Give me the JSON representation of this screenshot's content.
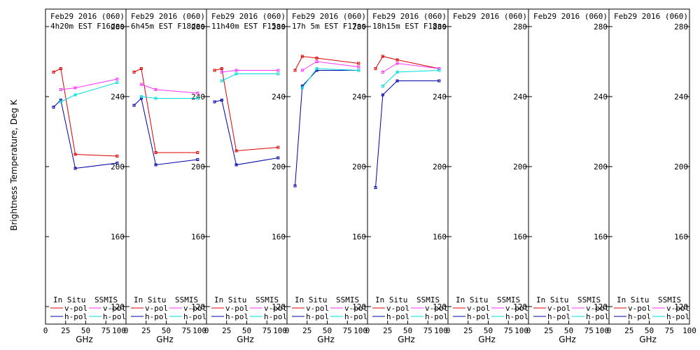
{
  "chart_data": {
    "type": "line",
    "ylabel": "Brightness Temperature, Deg K",
    "ylim": [
      110,
      290
    ],
    "yticks": [
      120,
      160,
      200,
      240,
      280
    ],
    "xlim": [
      0,
      100
    ],
    "xticks": [
      0,
      25,
      50,
      75,
      100
    ],
    "xtick_labels": [
      "0",
      "25",
      "50",
      "75",
      "100"
    ],
    "last_panel_xtick_labels": [
      "0",
      "25",
      "50",
      "75",
      "100"
    ],
    "colors": {
      "insitu_v": "#dd0000",
      "insitu_h": "#0000aa",
      "ssmis_v": "#ff33ff",
      "ssmis_h": "#00dddd"
    },
    "legend": {
      "insitu_title": "In Situ",
      "ssmis_title": "SSMIS",
      "vpol": "v-pol",
      "hpol": "h-pol"
    },
    "panels": [
      {
        "title_line1": "Feb29 2016 (060)",
        "title_line2": "4h20m EST F16des",
        "xlabel": "GHz",
        "series": {
          "insitu_v": {
            "x": [
              10,
              19,
              37,
              89
            ],
            "y": [
              254,
              256,
              207,
              206
            ]
          },
          "insitu_h": {
            "x": [
              10,
              19,
              37,
              89
            ],
            "y": [
              234,
              238,
              199,
              202
            ]
          },
          "ssmis_v": {
            "x": [
              19,
              37,
              89
            ],
            "y": [
              244,
              245,
              250
            ]
          },
          "ssmis_h": {
            "x": [
              19,
              37,
              89
            ],
            "y": [
              237,
              241,
              248
            ]
          }
        }
      },
      {
        "title_line1": "Feb29 2016 (060)",
        "title_line2": "6h45m EST F18des",
        "xlabel": "GHz",
        "series": {
          "insitu_v": {
            "x": [
              10,
              19,
              37,
              89
            ],
            "y": [
              254,
              256,
              208,
              208
            ]
          },
          "insitu_h": {
            "x": [
              10,
              19,
              37,
              89
            ],
            "y": [
              235,
              239,
              201,
              204
            ]
          },
          "ssmis_v": {
            "x": [
              19,
              37,
              89
            ],
            "y": [
              247,
              244,
              242
            ]
          },
          "ssmis_h": {
            "x": [
              19,
              37,
              89
            ],
            "y": [
              240,
              239,
              239
            ]
          }
        }
      },
      {
        "title_line1": "Feb29 2016 (060)",
        "title_line2": "11h40m EST F15asc",
        "xlabel": "GHz",
        "series": {
          "insitu_v": {
            "x": [
              10,
              19,
              37,
              89
            ],
            "y": [
              255,
              256,
              209,
              211
            ]
          },
          "insitu_h": {
            "x": [
              10,
              19,
              37,
              89
            ],
            "y": [
              237,
              238,
              201,
              205
            ]
          },
          "ssmis_v": {
            "x": [
              19,
              37,
              89
            ],
            "y": [
              254,
              255,
              255
            ]
          },
          "ssmis_h": {
            "x": [
              19,
              37,
              89
            ],
            "y": [
              249,
              253,
              253
            ]
          }
        }
      },
      {
        "title_line1": "Feb29 2016 (060)",
        "title_line2": "17h 5m EST F17asc",
        "xlabel": "GHz",
        "series": {
          "insitu_v": {
            "x": [
              10,
              19,
              37,
              89
            ],
            "y": [
              255,
              263,
              262,
              259
            ]
          },
          "insitu_h": {
            "x": [
              10,
              19,
              37,
              89
            ],
            "y": [
              189,
              246,
              255,
              255
            ]
          },
          "ssmis_v": {
            "x": [
              19,
              37,
              89
            ],
            "y": [
              255,
              260,
              257
            ]
          },
          "ssmis_h": {
            "x": [
              19,
              37,
              89
            ],
            "y": [
              245,
              256,
              255
            ]
          }
        }
      },
      {
        "title_line1": "Feb29 2016 (060)",
        "title_line2": "18h15m EST F18asc",
        "xlabel": "GHz",
        "series": {
          "insitu_v": {
            "x": [
              10,
              19,
              37,
              89
            ],
            "y": [
              256,
              263,
              261,
              256
            ]
          },
          "insitu_h": {
            "x": [
              10,
              19,
              37,
              89
            ],
            "y": [
              188,
              241,
              249,
              249
            ]
          },
          "ssmis_v": {
            "x": [
              19,
              37,
              89
            ],
            "y": [
              254,
              259,
              256
            ]
          },
          "ssmis_h": {
            "x": [
              19,
              37,
              89
            ],
            "y": [
              246,
              254,
              255
            ]
          }
        }
      },
      {
        "title_line1": "Feb29 2016 (060)",
        "title_line2": "",
        "xlabel": "GHz",
        "series": {}
      },
      {
        "title_line1": "Feb29 2016 (060)",
        "title_line2": "",
        "xlabel": "GHz",
        "series": {}
      },
      {
        "title_line1": "Feb29 2016 (060)",
        "title_line2": "",
        "xlabel": "GHz",
        "series": {}
      }
    ]
  }
}
